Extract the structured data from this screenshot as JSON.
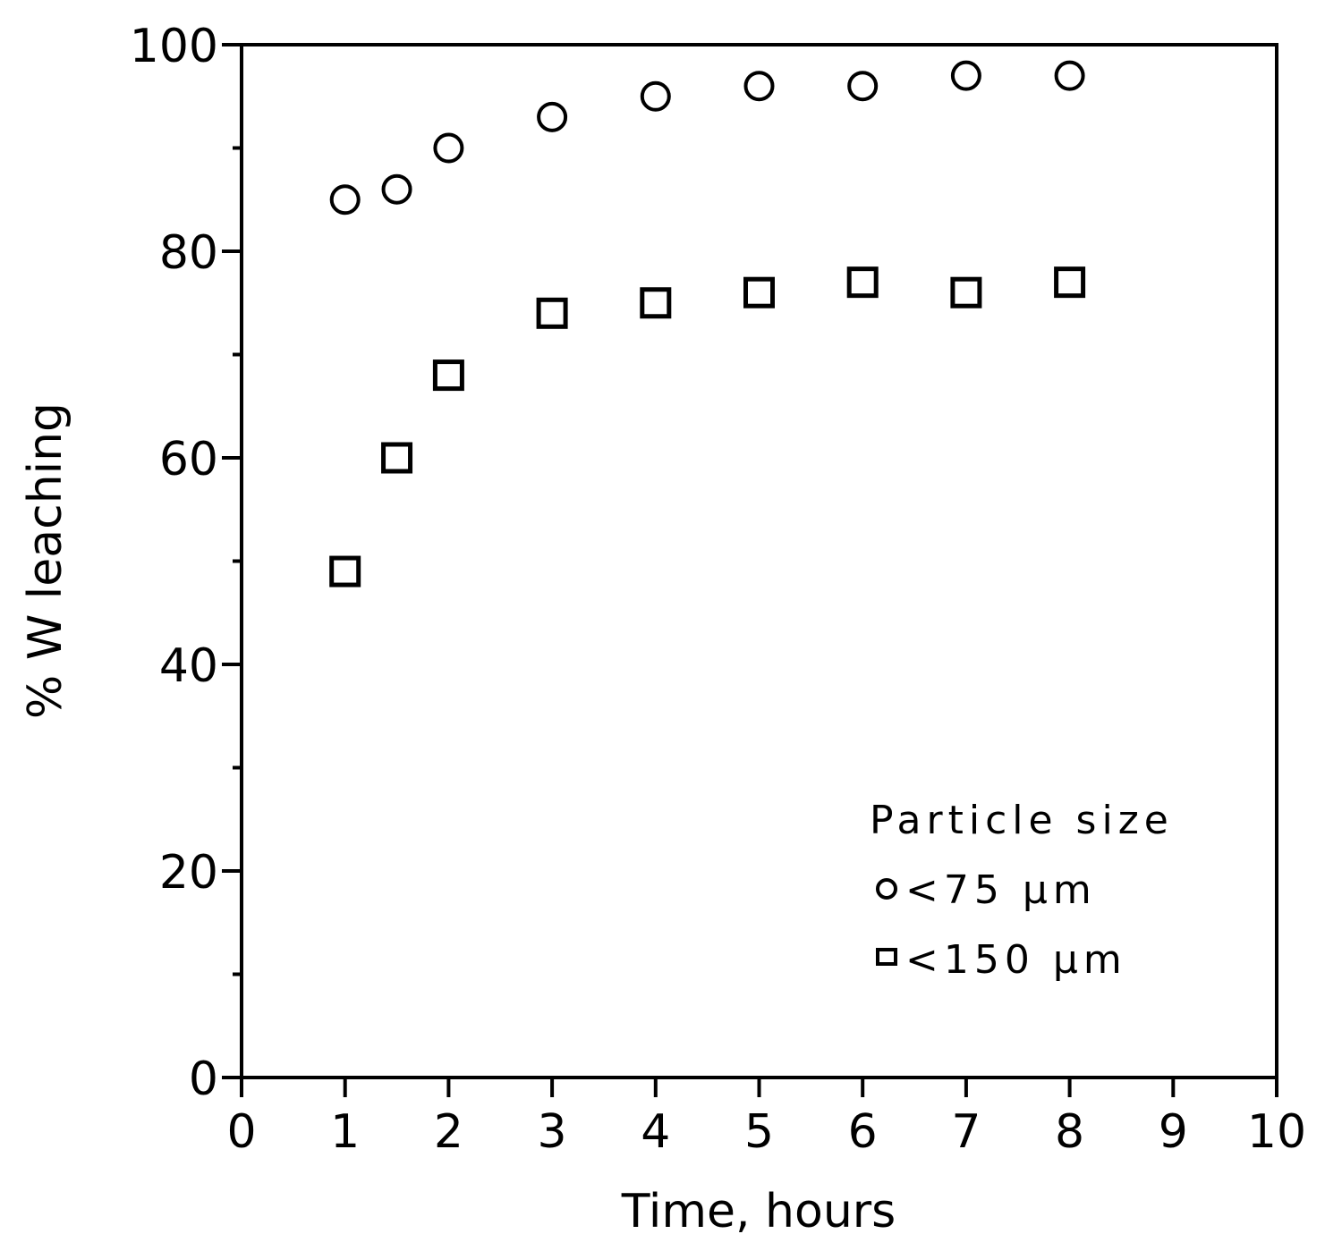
{
  "chart_data": {
    "type": "scatter",
    "title": "",
    "xlabel": "Time, hours",
    "ylabel": "% W leaching",
    "xlim": [
      0,
      10
    ],
    "ylim": [
      0,
      100
    ],
    "x_ticks": [
      0,
      1,
      2,
      3,
      4,
      5,
      6,
      7,
      8,
      9,
      10
    ],
    "y_ticks": [
      0,
      20,
      40,
      60,
      80,
      100
    ],
    "y_minor_ticks": [
      10,
      30,
      50,
      70,
      90
    ],
    "grid": false,
    "legend": {
      "title": "Particle size",
      "position": "lower right inside",
      "entries": [
        {
          "marker": "circle",
          "label": "<75 µm"
        },
        {
          "marker": "square",
          "label": "<150 µm"
        }
      ]
    },
    "series": [
      {
        "name": "<75 µm",
        "marker": "circle",
        "x": [
          1,
          1.5,
          2,
          3,
          4,
          5,
          6,
          7,
          8
        ],
        "y": [
          85,
          86,
          90,
          93,
          95,
          96,
          96,
          97,
          97
        ]
      },
      {
        "name": "<150 µm",
        "marker": "square",
        "x": [
          1,
          1.5,
          2,
          3,
          4,
          5,
          6,
          7,
          8
        ],
        "y": [
          49,
          60,
          68,
          74,
          75,
          76,
          77,
          76,
          77
        ]
      }
    ]
  },
  "colors": {
    "ink": "#000000",
    "background": "#ffffff"
  }
}
